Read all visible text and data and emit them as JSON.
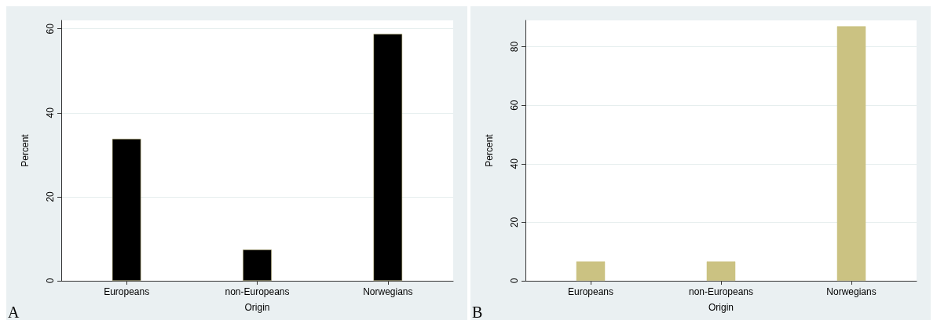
{
  "chart_data": [
    {
      "type": "bar",
      "xlabel": "Origin",
      "ylabel": "Percent",
      "categories": [
        "Europeans",
        "non-Europeans",
        "Norwegians"
      ],
      "values": [
        33.8,
        7.4,
        58.8
      ],
      "color": "#000000",
      "ylim": [
        0,
        62
      ],
      "yticks": [
        0,
        20,
        40,
        60
      ],
      "grid": "y",
      "annotations": [
        "A"
      ]
    },
    {
      "type": "bar",
      "xlabel": "Origin",
      "ylabel": "Percent",
      "categories": [
        "Europeans",
        "non-Europeans",
        "Norwegians"
      ],
      "values": [
        6.6,
        6.6,
        87.0
      ],
      "color": "#cbc282",
      "ylim": [
        0,
        89
      ],
      "yticks": [
        0,
        20,
        40,
        60,
        80
      ],
      "grid": "y",
      "annotations": [
        "B"
      ]
    }
  ]
}
